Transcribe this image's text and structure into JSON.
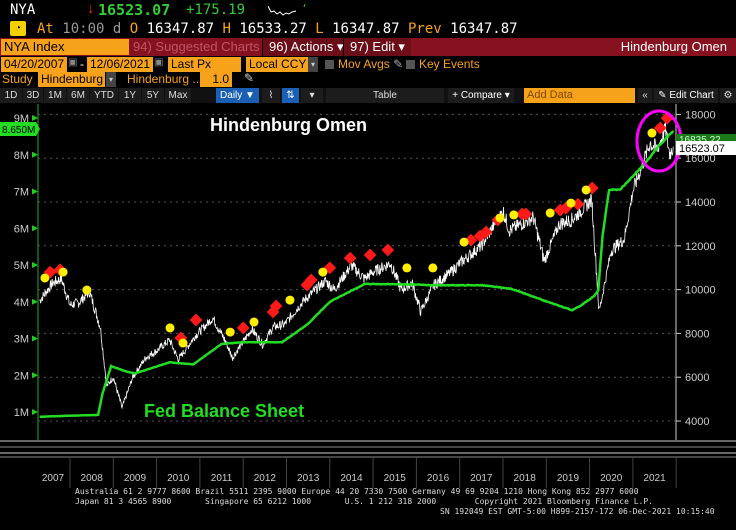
{
  "header": {
    "ticker": "NYA",
    "last": "16523.07",
    "change": "+175.19",
    "at_label": "At",
    "time": "10:00 d",
    "open_label": "O",
    "open": "16347.87",
    "high_label": "H",
    "high": "16533.27",
    "low_label": "L",
    "low": "16347.87",
    "prev_label": "Prev",
    "prev": "16347.87"
  },
  "menu": {
    "security": "NYA Index",
    "suggested": "94) Suggested Charts",
    "actions": "96) Actions",
    "edit": "97) Edit",
    "title": "Hindenburg Omen"
  },
  "controls": {
    "start_date": "04/20/2007",
    "end_date": "12/06/2021",
    "field": "Last Px",
    "currency": "Local CCY",
    "mov_avgs": "Mov Avgs",
    "key_events": "Key Events",
    "study_label": "Study",
    "study": "Hindenburg",
    "study_param": "Hindenburg ...",
    "param_value": "1.0"
  },
  "toolbar": {
    "ranges": [
      "1D",
      "3D",
      "1M",
      "6M",
      "YTD",
      "1Y",
      "5Y",
      "Max"
    ],
    "period": "Daily ▼",
    "table": "Table",
    "compare": "+ Compare ▾",
    "add_data_placeholder": "Add Data",
    "edit_chart": "Edit Chart"
  },
  "chart_data": {
    "type": "line",
    "title": "Hindenburg Omen",
    "annotation": "Fed Balance Sheet",
    "xlabel": "",
    "x_ticks": [
      "2007",
      "2008",
      "2009",
      "2010",
      "2011",
      "2012",
      "2013",
      "2014",
      "2015",
      "2016",
      "2017",
      "2018",
      "2019",
      "2020",
      "2021"
    ],
    "xlim": [
      2007.3,
      2021.93
    ],
    "left_axis": {
      "label": "Fed Balance Sheet",
      "ticks": [
        "1M",
        "2M",
        "3M",
        "4M",
        "5M",
        "6M",
        "7M",
        "8M",
        "9M"
      ],
      "ylim": [
        0.7,
        9.5
      ],
      "last_tag": "8.650M"
    },
    "right_axis": {
      "label": "NYA",
      "ticks": [
        "4000",
        "6000",
        "8000",
        "10000",
        "12000",
        "14000",
        "16000",
        "18000"
      ],
      "ylim": [
        3000,
        18700
      ],
      "last_tag": "16523.07",
      "hidden_tag": "16835.22"
    },
    "series": [
      {
        "name": "NYA Index",
        "color": "#ffffff",
        "axis": "right",
        "points": [
          [
            2007.3,
            9500
          ],
          [
            2007.6,
            10300
          ],
          [
            2007.8,
            10500
          ],
          [
            2008.0,
            9300
          ],
          [
            2008.2,
            9400
          ],
          [
            2008.45,
            9900
          ],
          [
            2008.7,
            8300
          ],
          [
            2008.85,
            5600
          ],
          [
            2009.0,
            6000
          ],
          [
            2009.2,
            4600
          ],
          [
            2009.45,
            6000
          ],
          [
            2009.75,
            6900
          ],
          [
            2010.0,
            7200
          ],
          [
            2010.3,
            7700
          ],
          [
            2010.5,
            6800
          ],
          [
            2010.9,
            7900
          ],
          [
            2011.3,
            8700
          ],
          [
            2011.6,
            7600
          ],
          [
            2011.75,
            6900
          ],
          [
            2012.2,
            8200
          ],
          [
            2012.45,
            7500
          ],
          [
            2012.7,
            8300
          ],
          [
            2012.95,
            8400
          ],
          [
            2013.4,
            9500
          ],
          [
            2013.9,
            10400
          ],
          [
            2014.1,
            10000
          ],
          [
            2014.5,
            11100
          ],
          [
            2014.8,
            10500
          ],
          [
            2015.0,
            10800
          ],
          [
            2015.4,
            11200
          ],
          [
            2015.65,
            10000
          ],
          [
            2015.9,
            10300
          ],
          [
            2016.1,
            9000
          ],
          [
            2016.4,
            10200
          ],
          [
            2016.8,
            10800
          ],
          [
            2017.0,
            11200
          ],
          [
            2017.5,
            12000
          ],
          [
            2018.0,
            13600
          ],
          [
            2018.15,
            12700
          ],
          [
            2018.7,
            13300
          ],
          [
            2018.95,
            11300
          ],
          [
            2019.3,
            13000
          ],
          [
            2019.6,
            13200
          ],
          [
            2020.05,
            14100
          ],
          [
            2020.22,
            9000
          ],
          [
            2020.5,
            11800
          ],
          [
            2020.8,
            12300
          ],
          [
            2021.0,
            14500
          ],
          [
            2021.4,
            16700
          ],
          [
            2021.55,
            16400
          ],
          [
            2021.75,
            17300
          ],
          [
            2021.85,
            16200
          ],
          [
            2021.93,
            16523
          ]
        ]
      },
      {
        "name": "Fed Balance Sheet",
        "color": "#22dd22",
        "axis": "left",
        "points": [
          [
            2007.3,
            0.87
          ],
          [
            2008.0,
            0.9
          ],
          [
            2008.65,
            0.92
          ],
          [
            2008.75,
            1.5
          ],
          [
            2008.95,
            2.25
          ],
          [
            2009.3,
            2.1
          ],
          [
            2009.5,
            2.05
          ],
          [
            2009.9,
            2.2
          ],
          [
            2010.3,
            2.35
          ],
          [
            2010.85,
            2.3
          ],
          [
            2011.5,
            2.85
          ],
          [
            2012.0,
            2.9
          ],
          [
            2012.9,
            2.9
          ],
          [
            2013.5,
            3.4
          ],
          [
            2014.0,
            4.0
          ],
          [
            2014.8,
            4.48
          ],
          [
            2015.5,
            4.48
          ],
          [
            2016.5,
            4.45
          ],
          [
            2017.5,
            4.45
          ],
          [
            2018.2,
            4.35
          ],
          [
            2018.9,
            4.05
          ],
          [
            2019.6,
            3.77
          ],
          [
            2019.8,
            3.9
          ],
          [
            2020.1,
            4.15
          ],
          [
            2020.2,
            4.3
          ],
          [
            2020.3,
            5.8
          ],
          [
            2020.45,
            7.05
          ],
          [
            2020.7,
            7.05
          ],
          [
            2020.95,
            7.35
          ],
          [
            2021.3,
            7.8
          ],
          [
            2021.6,
            8.25
          ],
          [
            2021.93,
            8.65
          ]
        ]
      }
    ],
    "signals_yellow": [
      [
        2007.42,
        10530
      ],
      [
        2007.84,
        10800
      ],
      [
        2008.39,
        9980
      ],
      [
        2010.31,
        8250
      ],
      [
        2010.61,
        7560
      ],
      [
        2011.7,
        8060
      ],
      [
        2012.25,
        8520
      ],
      [
        2013.08,
        9520
      ],
      [
        2013.84,
        10800
      ],
      [
        2015.78,
        10990
      ],
      [
        2016.38,
        10990
      ],
      [
        2017.1,
        12170
      ],
      [
        2017.93,
        13270
      ],
      [
        2018.25,
        13410
      ],
      [
        2019.09,
        13500
      ],
      [
        2019.57,
        13950
      ],
      [
        2019.92,
        14550
      ],
      [
        2021.44,
        17150
      ]
    ],
    "signals_red": [
      [
        2007.54,
        10800
      ],
      [
        2007.77,
        10900
      ],
      [
        2010.56,
        7790
      ],
      [
        2010.91,
        8610
      ],
      [
        2012.0,
        8250
      ],
      [
        2012.69,
        8980
      ],
      [
        2012.76,
        9250
      ],
      [
        2013.47,
        10210
      ],
      [
        2013.57,
        10440
      ],
      [
        2014.0,
        10990
      ],
      [
        2014.47,
        11440
      ],
      [
        2014.93,
        11580
      ],
      [
        2015.34,
        11810
      ],
      [
        2017.26,
        12260
      ],
      [
        2017.47,
        12450
      ],
      [
        2017.61,
        12630
      ],
      [
        2017.88,
        13180
      ],
      [
        2018.44,
        13450
      ],
      [
        2018.53,
        13450
      ],
      [
        2019.32,
        13630
      ],
      [
        2019.45,
        13720
      ],
      [
        2019.73,
        13900
      ],
      [
        2020.06,
        14640
      ],
      [
        2021.63,
        17380
      ],
      [
        2021.79,
        17830
      ]
    ],
    "highlight_color": "#ff00ff"
  },
  "footer": {
    "line1": "Australia 61 2 9777 8600 Brazil 5511 2395 9000 Europe 44 20 7330 7500 Germany 49 69 9204 1210 Hong Kong 852 2977 6000",
    "line2": "Japan 81 3 4565 8900       Singapore 65 6212 1000       U.S. 1 212 318 2000        Copyright 2021 Bloomberg Finance L.P.",
    "line3": "SN 192049 EST  GMT-5:00 H899-2157-172 06-Dec-2021 10:15:40"
  }
}
